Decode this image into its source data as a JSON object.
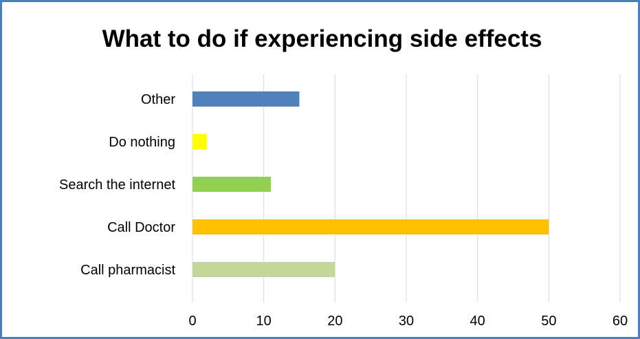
{
  "chart_data": {
    "type": "bar",
    "orientation": "horizontal",
    "title": "What to do if experiencing side effects",
    "xlabel": "",
    "ylabel": "",
    "categories": [
      "Other",
      "Do nothing",
      "Search the internet",
      "Call Doctor",
      "Call pharmacist"
    ],
    "values": [
      15,
      2,
      11,
      50,
      20
    ],
    "colors": [
      "#4f81bd",
      "#ffff00",
      "#92d050",
      "#ffc000",
      "#c4d79b"
    ],
    "xlim": [
      0,
      60
    ],
    "xticks": [
      0,
      10,
      20,
      30,
      40,
      50,
      60
    ],
    "grid": true,
    "legend": "none"
  }
}
